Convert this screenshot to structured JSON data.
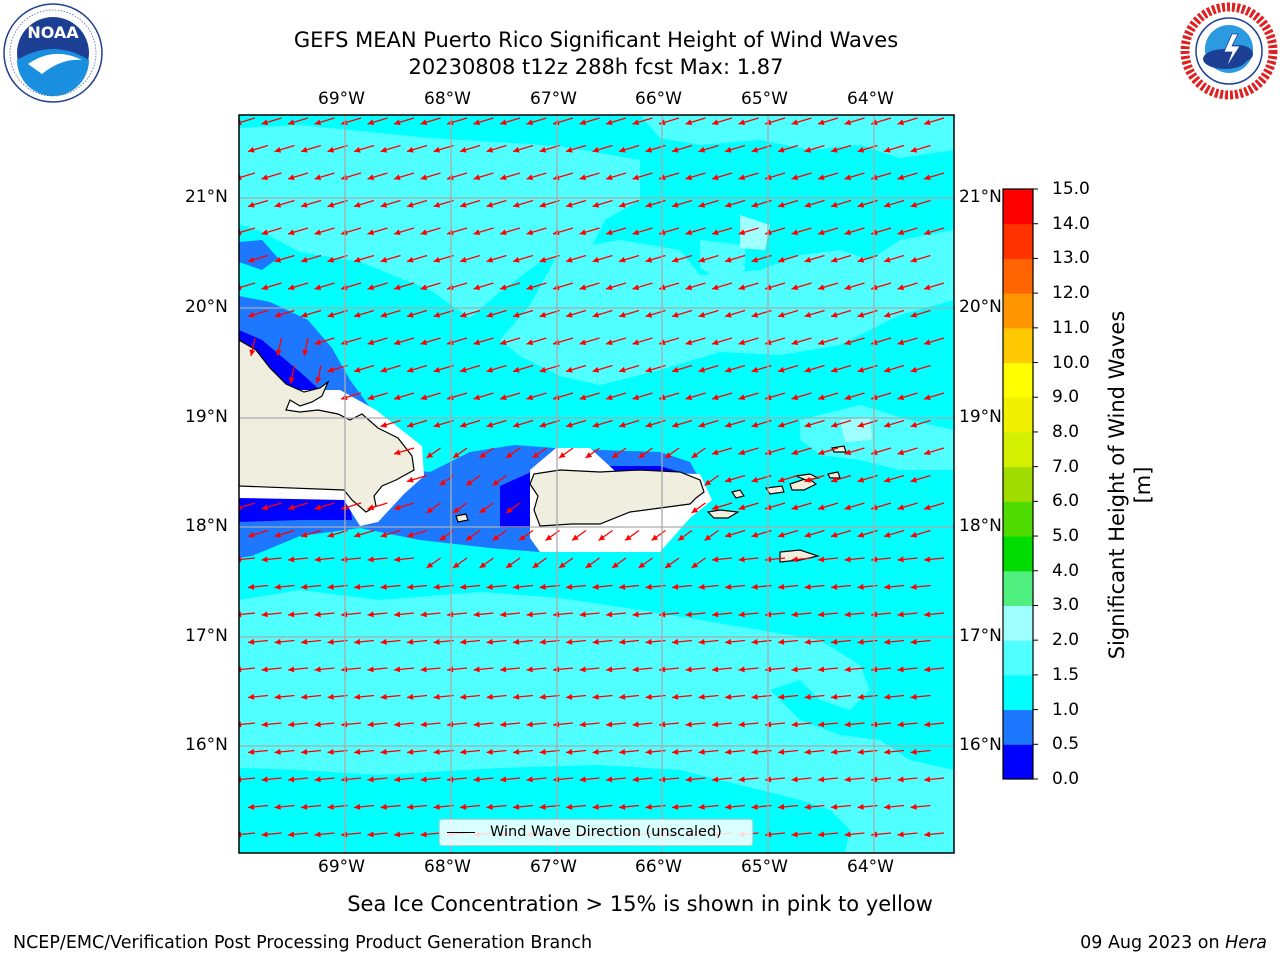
{
  "title": {
    "line1": "GEFS MEAN Puerto Rico Significant Height of Wind Waves",
    "line2": "20230808 t12z 288h fcst   Max: 1.87"
  },
  "logos": {
    "noara": {
      "text": "NOAA",
      "ring_text": "NATIONAL OCEANIC AND ATMOSPHERIC ADMINISTRATION · U.S. DEPARTMENT OF COMMERCE"
    },
    "nws": {
      "ring_text": "NATIONAL WEATHER SERVICE"
    }
  },
  "map": {
    "lon_labels": [
      "69°W",
      "68°W",
      "67°W",
      "66°W",
      "65°W",
      "64°W"
    ],
    "lat_labels": [
      "21°N",
      "20°N",
      "19°N",
      "18°N",
      "17°N",
      "16°N"
    ],
    "lon_range": [
      -70.0,
      -63.25
    ],
    "lat_range": [
      15.0,
      21.75
    ],
    "land_color": "#f0efdf",
    "arrow_color": "#ff0000",
    "dominant_wave_height_band": "1.5 - 2.0",
    "wind_direction": "easterly (arrows pointing west/south-west)"
  },
  "legend": {
    "label": "Wind Wave Direction (unscaled)"
  },
  "colorbar": {
    "title": "Significant Height of Wind Waves [m]",
    "ticks": [
      "0.0",
      "0.5",
      "1.0",
      "1.5",
      "2.0",
      "3.0",
      "4.0",
      "5.0",
      "6.0",
      "7.0",
      "8.0",
      "9.0",
      "10.0",
      "11.0",
      "12.0",
      "13.0",
      "14.0",
      "15.0"
    ],
    "colors": [
      "#0000ff",
      "#1e78ff",
      "#00ffff",
      "#50ffff",
      "#a0ffff",
      "#50f080",
      "#00dc00",
      "#50dc00",
      "#a0dc00",
      "#d2f000",
      "#f0f000",
      "#ffff00",
      "#ffc800",
      "#ff9600",
      "#ff6400",
      "#ff3200",
      "#ff0000"
    ]
  },
  "note": "Sea Ice Concentration > 15% is shown in pink to yellow",
  "footer": {
    "left": "NCEP/EMC/Verification Post Processing Product Generation Branch",
    "right_prefix": "09 Aug 2023 on ",
    "right_machine": "Hera"
  }
}
